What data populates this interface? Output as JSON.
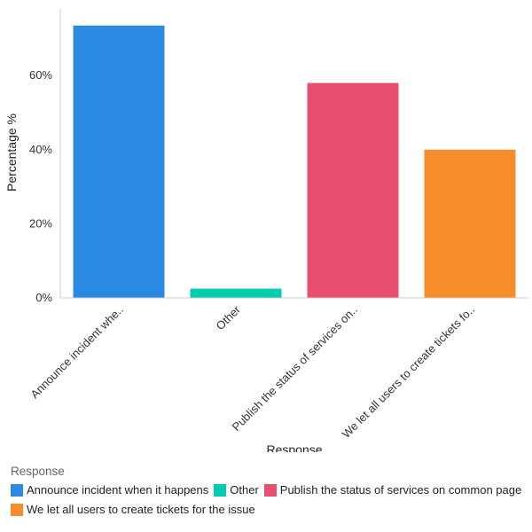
{
  "chart_data": {
    "type": "bar",
    "categories": [
      "Announce incident whe..",
      "Other",
      "Publish the status of services on..",
      "We let all users to create tickets fo.."
    ],
    "values": [
      73.5,
      2.5,
      58,
      40
    ],
    "colors": [
      "#2a8ae2",
      "#00cdb0",
      "#e84e6e",
      "#f78c2b"
    ],
    "xlabel": "Response",
    "ylabel": "Percentage %",
    "ylim": [
      0,
      78
    ],
    "yticks": [
      0,
      20,
      40,
      60
    ],
    "ytick_labels": [
      "0%",
      "20%",
      "40%",
      "60%"
    ],
    "grid": false,
    "legend": {
      "title": "Response",
      "placement": "bottom-left",
      "entries": [
        "Announce incident when it happens",
        "Other",
        "Publish the status of services on common page",
        "We let all users to create tickets for the issue"
      ]
    }
  }
}
